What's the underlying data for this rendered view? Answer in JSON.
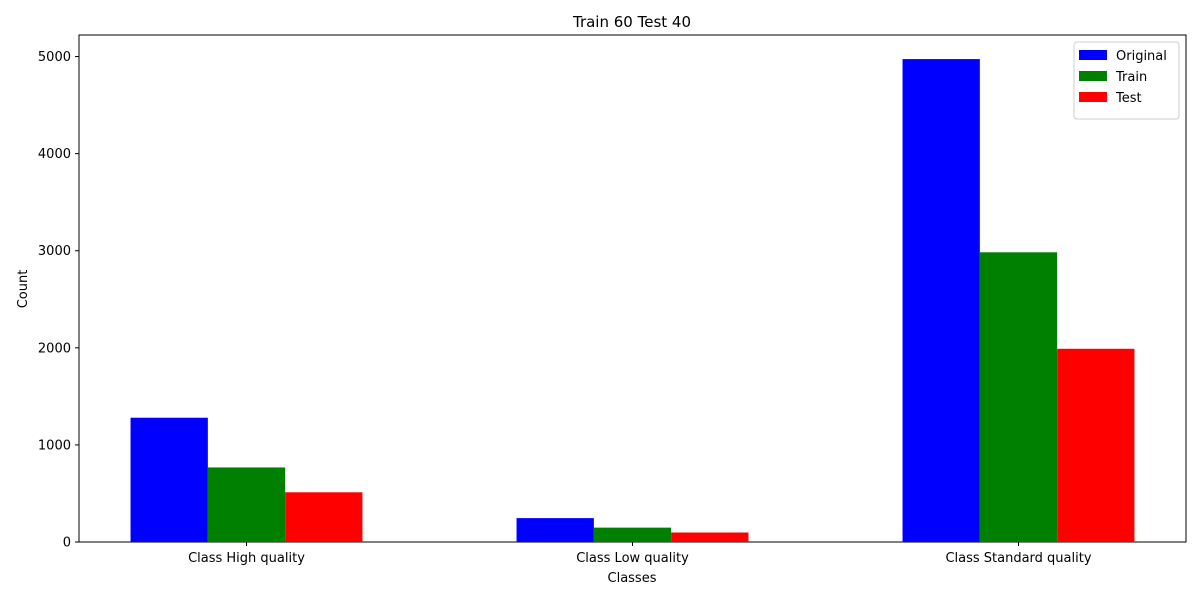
{
  "chart_data": {
    "type": "bar",
    "title": "Train 60 Test 40",
    "xlabel": "Classes",
    "ylabel": "Count",
    "categories": [
      "Class High quality",
      "Class Low quality",
      "Class Standard quality"
    ],
    "series": [
      {
        "name": "Original",
        "color": "#0000ff",
        "values": [
          1280,
          246,
          4974
        ]
      },
      {
        "name": "Train",
        "color": "#008000",
        "values": [
          768,
          148,
          2984
        ]
      },
      {
        "name": "Test",
        "color": "#ff0000",
        "values": [
          512,
          98,
          1990
        ]
      }
    ],
    "ylim": [
      0,
      5222
    ],
    "yticks": [
      0,
      1000,
      2000,
      3000,
      4000,
      5000
    ],
    "legend_position": "top-right",
    "grid": false
  }
}
